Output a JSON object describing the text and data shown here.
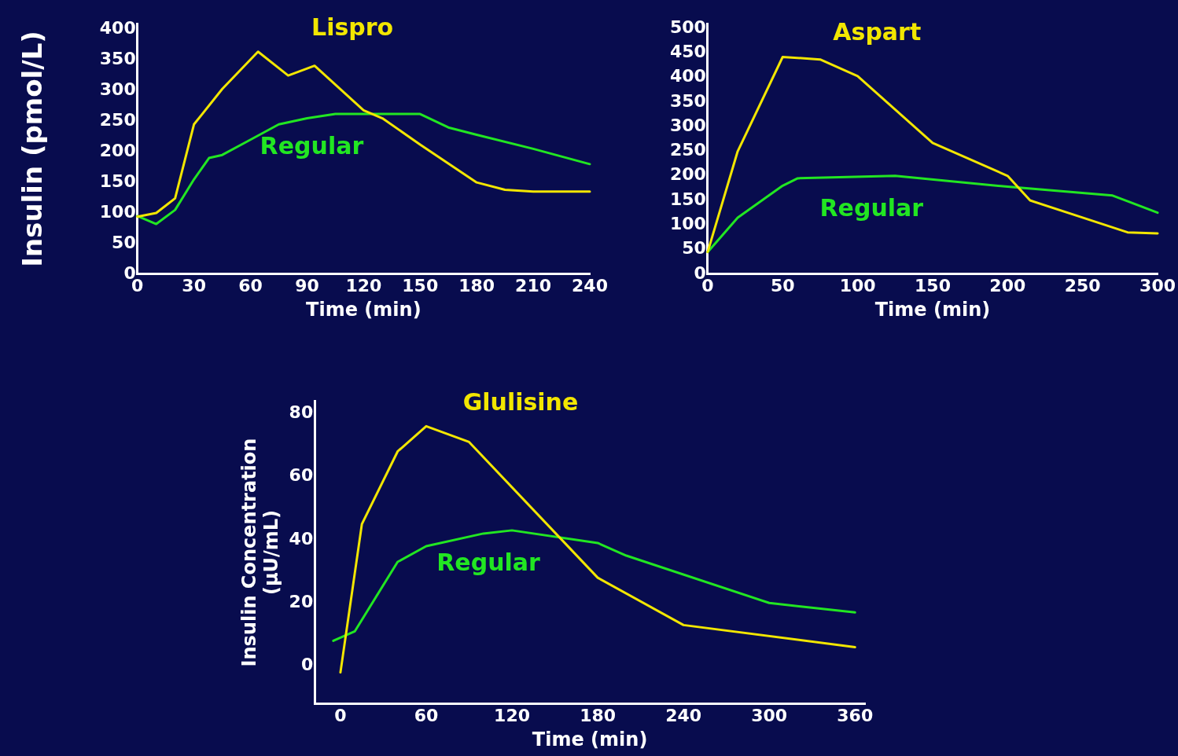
{
  "chart_data": [
    {
      "type": "line",
      "xlabel": "Time (min)",
      "ylabel": "Insulin (pmol/L)",
      "xlim": [
        0,
        240
      ],
      "ylim": [
        0,
        410
      ],
      "xticks": [
        0,
        30,
        60,
        90,
        120,
        150,
        180,
        210,
        240
      ],
      "yticks": [
        0,
        50,
        100,
        150,
        200,
        250,
        300,
        350,
        400
      ],
      "grid": false,
      "legend": false,
      "marker": "none",
      "series": [
        {
          "name": "Lispro",
          "color": "#f2e600",
          "x": [
            0,
            10,
            20,
            30,
            45,
            55,
            64,
            80,
            94,
            120,
            130,
            150,
            180,
            195,
            210,
            240
          ],
          "values": [
            94,
            100,
            124,
            245,
            303,
            335,
            364,
            325,
            341,
            268,
            255,
            212,
            150,
            138,
            135,
            135
          ]
        },
        {
          "name": "Regular",
          "color": "#22e622",
          "x": [
            0,
            10,
            20,
            30,
            38,
            45,
            60,
            75,
            90,
            105,
            120,
            150,
            165,
            180,
            210,
            240
          ],
          "values": [
            95,
            82,
            105,
            155,
            190,
            195,
            220,
            245,
            255,
            262,
            262,
            262,
            240,
            228,
            205,
            180
          ]
        }
      ]
    },
    {
      "type": "line",
      "xlabel": "Time (min)",
      "xlim": [
        0,
        300
      ],
      "ylim": [
        0,
        510
      ],
      "xticks": [
        0,
        50,
        100,
        150,
        200,
        250,
        300
      ],
      "yticks": [
        0,
        50,
        100,
        150,
        200,
        250,
        300,
        350,
        400,
        450,
        500
      ],
      "grid": false,
      "legend": false,
      "marker": "none",
      "series": [
        {
          "name": "Aspart",
          "color": "#f2e600",
          "x": [
            0,
            20,
            50,
            75,
            100,
            150,
            200,
            215,
            250,
            280,
            300
          ],
          "values": [
            45,
            250,
            442,
            437,
            403,
            267,
            200,
            150,
            115,
            85,
            83
          ]
        },
        {
          "name": "Regular",
          "color": "#22e622",
          "x": [
            0,
            20,
            50,
            60,
            125,
            200,
            270,
            300
          ],
          "values": [
            45,
            115,
            180,
            195,
            200,
            178,
            160,
            125
          ]
        }
      ]
    },
    {
      "type": "line",
      "xlabel": "Time (min)",
      "ylabel": "Insulin Concentration\n(µU/mL)",
      "xlim": [
        -18,
        367
      ],
      "ylim": [
        -12,
        84
      ],
      "xticks": [
        0,
        60,
        120,
        180,
        240,
        300,
        360
      ],
      "yticks": [
        0,
        20,
        40,
        60,
        80
      ],
      "grid": false,
      "legend": false,
      "marker": "none",
      "series": [
        {
          "name": "Glulisine",
          "color": "#f2e600",
          "x": [
            0,
            15,
            40,
            60,
            90,
            180,
            240,
            360
          ],
          "values": [
            -2,
            45,
            68,
            76,
            71,
            28,
            13,
            6
          ]
        },
        {
          "name": "Regular",
          "color": "#22e622",
          "x": [
            -5,
            10,
            40,
            60,
            100,
            120,
            180,
            200,
            300,
            360
          ],
          "values": [
            8,
            11,
            33,
            38,
            42,
            43,
            39,
            35,
            20,
            17
          ]
        }
      ]
    }
  ]
}
